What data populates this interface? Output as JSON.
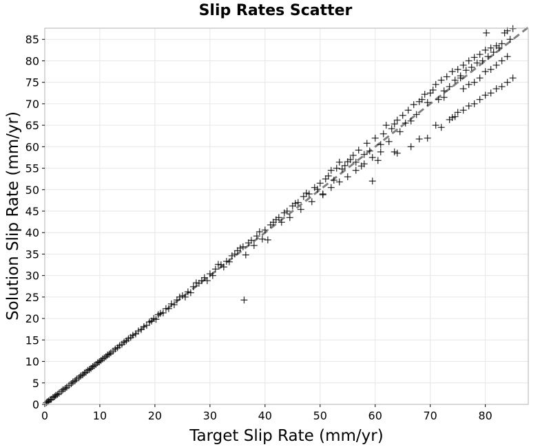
{
  "chart_data": {
    "type": "scatter",
    "title": "Slip Rates Scatter",
    "xlabel": "Target Slip Rate (mm/yr)",
    "ylabel": "Solution Slip Rate (mm/yr)",
    "xlim": [
      0,
      87.8
    ],
    "ylim": [
      0,
      87.6
    ],
    "xticks": [
      "0",
      "10",
      "20",
      "30",
      "40",
      "50",
      "60",
      "70",
      "80"
    ],
    "yticks": [
      "0",
      "5",
      "10",
      "15",
      "20",
      "25",
      "30",
      "35",
      "40",
      "45",
      "50",
      "55",
      "60",
      "65",
      "70",
      "75",
      "80",
      "85"
    ],
    "grid": true,
    "marker": "+",
    "marker_color": "#000000",
    "reference_line": {
      "style": "dashed",
      "color": "#7f7f7f",
      "x": [
        0,
        87.8
      ],
      "y": [
        0,
        87.8
      ]
    },
    "points": [
      [
        0.3,
        0.4
      ],
      [
        0.5,
        0.6
      ],
      [
        0.7,
        0.8
      ],
      [
        1.0,
        1.1
      ],
      [
        1.2,
        1.2
      ],
      [
        1.5,
        1.6
      ],
      [
        1.8,
        1.8
      ],
      [
        2.0,
        2.1
      ],
      [
        2.3,
        2.3
      ],
      [
        2.6,
        2.6
      ],
      [
        3.0,
        3.0
      ],
      [
        3.3,
        3.4
      ],
      [
        3.7,
        3.7
      ],
      [
        4.0,
        4.0
      ],
      [
        4.4,
        4.4
      ],
      [
        4.8,
        4.8
      ],
      [
        5.1,
        5.2
      ],
      [
        5.5,
        5.5
      ],
      [
        5.8,
        5.9
      ],
      [
        6.2,
        6.2
      ],
      [
        6.5,
        6.6
      ],
      [
        6.9,
        6.9
      ],
      [
        7.2,
        7.3
      ],
      [
        7.5,
        7.5
      ],
      [
        7.8,
        7.9
      ],
      [
        8.1,
        8.1
      ],
      [
        8.4,
        8.4
      ],
      [
        8.7,
        8.8
      ],
      [
        9.0,
        9.0
      ],
      [
        9.3,
        9.3
      ],
      [
        9.6,
        9.7
      ],
      [
        9.9,
        9.9
      ],
      [
        10.2,
        10.2
      ],
      [
        10.5,
        10.6
      ],
      [
        10.8,
        10.8
      ],
      [
        11.1,
        11.1
      ],
      [
        11.4,
        11.5
      ],
      [
        11.7,
        11.7
      ],
      [
        12.0,
        12.0
      ],
      [
        12.4,
        12.4
      ],
      [
        12.8,
        12.9
      ],
      [
        13.2,
        13.2
      ],
      [
        13.6,
        13.7
      ],
      [
        14.0,
        14.0
      ],
      [
        14.4,
        14.5
      ],
      [
        14.8,
        14.8
      ],
      [
        15.2,
        15.3
      ],
      [
        15.6,
        15.6
      ],
      [
        16.0,
        16.1
      ],
      [
        16.5,
        16.4
      ],
      [
        17.0,
        17.1
      ],
      [
        17.5,
        17.4
      ],
      [
        18.0,
        18.1
      ],
      [
        18.5,
        18.4
      ],
      [
        19.0,
        19.2
      ],
      [
        19.4,
        19.4
      ],
      [
        19.8,
        20.0
      ],
      [
        20.2,
        19.8
      ],
      [
        20.6,
        20.9
      ],
      [
        21.0,
        21.2
      ],
      [
        21.5,
        21.3
      ],
      [
        22.0,
        22.3
      ],
      [
        22.5,
        22.3
      ],
      [
        23.0,
        23.4
      ],
      [
        23.5,
        23.2
      ],
      [
        24.0,
        24.3
      ],
      [
        24.5,
        25.0
      ],
      [
        25.0,
        25.3
      ],
      [
        25.5,
        25.0
      ],
      [
        26.0,
        26.2
      ],
      [
        26.5,
        26.0
      ],
      [
        27.0,
        27.4
      ],
      [
        27.5,
        28.3
      ],
      [
        28.0,
        28.2
      ],
      [
        28.5,
        28.8
      ],
      [
        29.0,
        29.5
      ],
      [
        29.5,
        28.8
      ],
      [
        30.0,
        30.4
      ],
      [
        30.5,
        30.0
      ],
      [
        31.0,
        31.5
      ],
      [
        31.5,
        32.6
      ],
      [
        32.0,
        32.5
      ],
      [
        32.5,
        32.0
      ],
      [
        33.0,
        33.3
      ],
      [
        33.5,
        33.2
      ],
      [
        34.0,
        34.6
      ],
      [
        34.5,
        35.0
      ],
      [
        35.0,
        35.8
      ],
      [
        35.5,
        36.4
      ],
      [
        36.0,
        36.7
      ],
      [
        36.2,
        24.3
      ],
      [
        36.5,
        34.8
      ],
      [
        37.0,
        37.6
      ],
      [
        37.5,
        38.2
      ],
      [
        38.0,
        37.0
      ],
      [
        38.5,
        39.2
      ],
      [
        39.0,
        40.2
      ],
      [
        39.5,
        38.5
      ],
      [
        40.0,
        40.6
      ],
      [
        40.5,
        38.3
      ],
      [
        41.0,
        41.8
      ],
      [
        41.5,
        42.4
      ],
      [
        42.0,
        43.0
      ],
      [
        42.5,
        43.5
      ],
      [
        43.0,
        42.4
      ],
      [
        43.5,
        44.6
      ],
      [
        44.0,
        45.0
      ],
      [
        44.5,
        43.5
      ],
      [
        45.0,
        46.2
      ],
      [
        45.5,
        46.8
      ],
      [
        46.0,
        47.0
      ],
      [
        46.5,
        45.4
      ],
      [
        47.0,
        48.4
      ],
      [
        47.5,
        49.2
      ],
      [
        48.0,
        49.0
      ],
      [
        48.5,
        47.2
      ],
      [
        49.0,
        50.5
      ],
      [
        49.5,
        50.1
      ],
      [
        50.0,
        51.5
      ],
      [
        50.5,
        49.0
      ],
      [
        51.0,
        52.5
      ],
      [
        51.5,
        53.2
      ],
      [
        52.0,
        54.5
      ],
      [
        52.5,
        52.2
      ],
      [
        53.0,
        55.0
      ],
      [
        53.5,
        56.4
      ],
      [
        54.0,
        54.8
      ],
      [
        54.5,
        55.6
      ],
      [
        55.0,
        56.5
      ],
      [
        55.5,
        57.0
      ],
      [
        56.0,
        58.0
      ],
      [
        56.5,
        56.4
      ],
      [
        57.0,
        59.2
      ],
      [
        57.5,
        55.5
      ],
      [
        58.0,
        58.2
      ],
      [
        58.5,
        60.8
      ],
      [
        59.0,
        59.0
      ],
      [
        59.5,
        57.5
      ],
      [
        60.0,
        62.0
      ],
      [
        60.5,
        56.8
      ],
      [
        61.0,
        60.5
      ],
      [
        61.5,
        63.0
      ],
      [
        62.0,
        65.0
      ],
      [
        62.5,
        61.2
      ],
      [
        63.0,
        64.2
      ],
      [
        63.5,
        65.3
      ],
      [
        64.0,
        66.2
      ],
      [
        64.5,
        63.5
      ],
      [
        65.0,
        67.3
      ],
      [
        65.5,
        65.5
      ],
      [
        66.0,
        68.5
      ],
      [
        66.5,
        66.0
      ],
      [
        67.0,
        69.8
      ],
      [
        67.5,
        67.5
      ],
      [
        68.0,
        70.5
      ],
      [
        68.5,
        71.0
      ],
      [
        69.0,
        72.2
      ],
      [
        69.5,
        70.3
      ],
      [
        70.0,
        72.5
      ],
      [
        70.5,
        73.2
      ],
      [
        71.0,
        74.5
      ],
      [
        71.5,
        71.0
      ],
      [
        72.0,
        75.5
      ],
      [
        72.5,
        73.0
      ],
      [
        73.0,
        76.3
      ],
      [
        73.5,
        74.0
      ],
      [
        74.0,
        77.5
      ],
      [
        74.5,
        75.5
      ],
      [
        75.0,
        78.0
      ],
      [
        75.5,
        76.5
      ],
      [
        76.0,
        79.0
      ],
      [
        76.5,
        77.8
      ],
      [
        77.0,
        80.0
      ],
      [
        77.5,
        78.5
      ],
      [
        78.0,
        80.8
      ],
      [
        78.5,
        79.5
      ],
      [
        79.0,
        81.5
      ],
      [
        79.5,
        80.0
      ],
      [
        80.0,
        82.5
      ],
      [
        80.5,
        81.0
      ],
      [
        81.0,
        83.0
      ],
      [
        81.5,
        82.0
      ],
      [
        82.0,
        83.5
      ],
      [
        82.5,
        83.0
      ],
      [
        83.0,
        84.0
      ],
      [
        83.5,
        86.5
      ],
      [
        84.0,
        87.0
      ],
      [
        84.5,
        85.0
      ],
      [
        85.0,
        87.5
      ],
      [
        80.2,
        86.5
      ],
      [
        50.5,
        48.8
      ],
      [
        52.0,
        50.5
      ],
      [
        53.5,
        51.8
      ],
      [
        55.0,
        53.0
      ],
      [
        56.5,
        54.5
      ],
      [
        58.0,
        56.0
      ],
      [
        59.5,
        52.0
      ],
      [
        61.0,
        58.8
      ],
      [
        63.5,
        58.8
      ],
      [
        64.0,
        58.5
      ],
      [
        66.5,
        60.0
      ],
      [
        68.0,
        61.8
      ],
      [
        69.5,
        62.0
      ],
      [
        71.0,
        65.0
      ],
      [
        72.0,
        64.5
      ],
      [
        73.5,
        66.3
      ],
      [
        74.0,
        66.8
      ],
      [
        74.5,
        67.0
      ],
      [
        75.0,
        68.0
      ],
      [
        76.0,
        68.5
      ],
      [
        77.0,
        69.5
      ],
      [
        78.0,
        70.0
      ],
      [
        79.0,
        71.0
      ],
      [
        80.0,
        72.0
      ],
      [
        81.0,
        72.5
      ],
      [
        82.0,
        73.5
      ],
      [
        83.0,
        74.0
      ],
      [
        84.0,
        75.0
      ],
      [
        85.0,
        76.0
      ],
      [
        72.5,
        71.5
      ],
      [
        76.0,
        73.5
      ],
      [
        77.0,
        74.5
      ],
      [
        78.0,
        75.0
      ],
      [
        79.0,
        76.0
      ],
      [
        80.0,
        77.5
      ],
      [
        81.0,
        78.0
      ],
      [
        82.0,
        79.0
      ],
      [
        83.0,
        80.0
      ],
      [
        84.0,
        81.0
      ],
      [
        75.5,
        76.0
      ]
    ]
  }
}
